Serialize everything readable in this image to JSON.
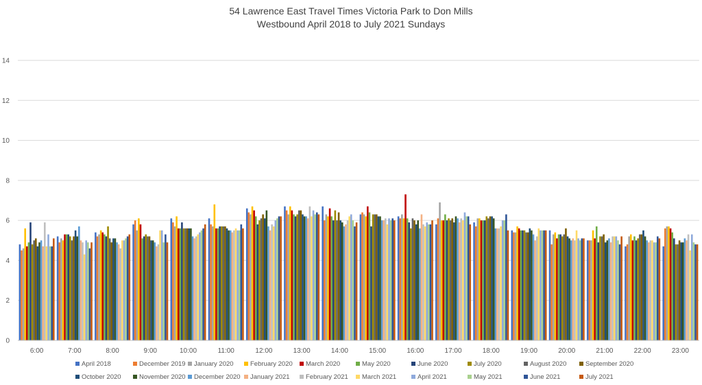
{
  "chart_data": {
    "type": "bar",
    "title": "54 Lawrence East Travel Times Victoria Park to Don Mills",
    "subtitle": "Westbound April 2018 to July 2021 Sundays",
    "xlabel": "",
    "ylabel": "",
    "ylim": [
      0,
      14
    ],
    "yticks": [
      "0",
      "2",
      "4",
      "6",
      "8",
      "10",
      "12",
      "14"
    ],
    "grid": true,
    "legend_position": "bottom",
    "categories": [
      "6:00",
      "7:00",
      "8:00",
      "9:00",
      "10:00",
      "11:00",
      "12:00",
      "13:00",
      "14:00",
      "15:00",
      "16:00",
      "17:00",
      "18:00",
      "19:00",
      "20:00",
      "21:00",
      "22:00",
      "23:00"
    ],
    "series": [
      {
        "name": "April 2018",
        "color": "#4472C4",
        "values": [
          4.8,
          5.2,
          5.4,
          5.8,
          6.1,
          6.1,
          6.6,
          6.7,
          6.7,
          6.3,
          6.2,
          5.8,
          5.9,
          5.5,
          5.5,
          5.0,
          4.7,
          4.7
        ]
      },
      {
        "name": "December 2019",
        "color": "#ED7D31",
        "values": [
          4.5,
          4.9,
          5.2,
          6.0,
          5.9,
          5.8,
          6.4,
          6.5,
          6.0,
          6.4,
          6.1,
          6.1,
          5.7,
          5.4,
          4.8,
          5.0,
          4.8,
          5.6
        ]
      },
      {
        "name": "January 2020",
        "color": "#A5A5A5",
        "values": [
          4.6,
          5.1,
          5.3,
          5.5,
          5.7,
          5.7,
          6.3,
          6.3,
          6.3,
          6.3,
          6.3,
          6.9,
          6.1,
          5.4,
          5.3,
          5.0,
          5.2,
          5.7
        ]
      },
      {
        "name": "February 2020",
        "color": "#FFC000",
        "values": [
          5.6,
          5.0,
          5.5,
          6.1,
          6.2,
          6.8,
          6.7,
          6.7,
          6.2,
          6.2,
          6.1,
          6.0,
          6.1,
          5.7,
          5.4,
          5.5,
          5.3,
          5.7
        ]
      },
      {
        "name": "March 2020",
        "color": "#C00000",
        "values": [
          4.7,
          5.3,
          5.4,
          5.8,
          5.6,
          5.6,
          6.5,
          6.5,
          6.6,
          6.7,
          7.3,
          6.0,
          6.0,
          5.6,
          5.1,
          5.1,
          5.0,
          5.6
        ]
      },
      {
        "name": "May 2020",
        "color": "#70AD47",
        "values": [
          4.9,
          5.3,
          5.3,
          5.1,
          5.6,
          5.6,
          6.2,
          6.3,
          6.2,
          6.4,
          6.1,
          6.3,
          6.0,
          5.5,
          5.3,
          5.7,
          5.2,
          5.4
        ]
      },
      {
        "name": "June 2020",
        "color": "#264478",
        "values": [
          5.9,
          5.3,
          5.2,
          5.2,
          5.9,
          5.7,
          5.8,
          6.2,
          6.0,
          5.7,
          5.9,
          6.0,
          6.0,
          5.5,
          5.3,
          4.9,
          5.0,
          5.1
        ]
      },
      {
        "name": "July 2020",
        "color": "#9E8A00",
        "values": [
          4.8,
          5.2,
          5.7,
          5.3,
          5.6,
          5.7,
          6.0,
          6.3,
          6.5,
          6.3,
          5.6,
          6.1,
          6.2,
          5.5,
          5.2,
          5.2,
          5.1,
          4.8
        ]
      },
      {
        "name": "August 2020",
        "color": "#636363",
        "values": [
          5.0,
          5.0,
          5.1,
          5.2,
          5.6,
          5.7,
          6.1,
          6.5,
          6.0,
          6.3,
          6.1,
          6.0,
          6.1,
          5.4,
          5.3,
          5.2,
          5.3,
          4.8
        ]
      },
      {
        "name": "September 2020",
        "color": "#7F6000",
        "values": [
          5.1,
          5.2,
          4.9,
          5.2,
          5.6,
          5.7,
          6.3,
          6.5,
          6.4,
          6.3,
          6.0,
          6.1,
          6.2,
          5.4,
          5.6,
          5.3,
          5.3,
          5.0
        ]
      },
      {
        "name": "October 2020",
        "color": "#1F4E79",
        "values": [
          4.7,
          5.5,
          5.1,
          5.0,
          5.6,
          5.6,
          6.1,
          6.3,
          6.0,
          6.2,
          5.8,
          5.9,
          6.2,
          5.6,
          5.2,
          4.9,
          5.5,
          4.9
        ]
      },
      {
        "name": "November 2020",
        "color": "#375623",
        "values": [
          4.9,
          5.2,
          5.1,
          5.0,
          5.6,
          5.5,
          6.5,
          6.2,
          5.9,
          6.2,
          6.0,
          6.2,
          6.1,
          5.5,
          5.1,
          5.0,
          5.2,
          4.9
        ]
      },
      {
        "name": "December 2020",
        "color": "#5B9BD5",
        "values": [
          5.0,
          5.7,
          4.9,
          4.9,
          5.2,
          5.5,
          5.7,
          6.2,
          5.7,
          6.0,
          5.6,
          6.1,
          5.6,
          5.3,
          5.0,
          5.1,
          5.0,
          5.1
        ]
      },
      {
        "name": "January 2021",
        "color": "#F4B183",
        "values": [
          4.7,
          5.0,
          4.8,
          4.7,
          5.1,
          5.4,
          5.5,
          6.1,
          5.8,
          6.0,
          6.3,
          5.9,
          5.6,
          5.0,
          5.1,
          4.9,
          4.9,
          5.0
        ]
      },
      {
        "name": "February 2021",
        "color": "#BFBFBF",
        "values": [
          5.9,
          4.9,
          4.6,
          4.8,
          5.2,
          5.5,
          5.8,
          6.7,
          6.0,
          6.1,
          5.8,
          6.1,
          5.6,
          5.2,
          5.0,
          5.2,
          5.0,
          5.3
        ]
      },
      {
        "name": "March 2021",
        "color": "#FFD966",
        "values": [
          4.7,
          4.3,
          5.0,
          5.5,
          5.3,
          5.6,
          5.7,
          6.2,
          6.2,
          5.8,
          5.7,
          6.0,
          5.7,
          5.6,
          5.5,
          5.2,
          5.0,
          4.5
        ]
      },
      {
        "name": "April 2021",
        "color": "#8FAADC",
        "values": [
          5.3,
          5.0,
          5.0,
          5.5,
          5.4,
          5.5,
          6.0,
          6.5,
          6.3,
          6.1,
          5.9,
          6.4,
          6.0,
          5.5,
          5.1,
          5.2,
          4.9,
          5.3
        ]
      },
      {
        "name": "May 2021",
        "color": "#A9D18E",
        "values": [
          4.7,
          4.9,
          5.1,
          4.9,
          5.5,
          5.5,
          6.1,
          6.3,
          6.0,
          6.0,
          5.8,
          6.2,
          6.0,
          5.5,
          5.0,
          5.0,
          4.9,
          4.9
        ]
      },
      {
        "name": "June 2021",
        "color": "#2F5597",
        "values": [
          4.7,
          4.6,
          5.2,
          5.3,
          5.6,
          5.8,
          6.2,
          6.4,
          5.7,
          6.1,
          5.8,
          6.2,
          6.3,
          5.5,
          5.1,
          4.8,
          5.2,
          4.8
        ]
      },
      {
        "name": "July 2021",
        "color": "#C55A11",
        "values": [
          5.1,
          4.9,
          5.3,
          4.9,
          5.8,
          5.6,
          6.2,
          6.3,
          5.9,
          6.0,
          6.0,
          5.8,
          5.5,
          5.5,
          5.1,
          5.2,
          5.1,
          4.8
        ]
      }
    ]
  }
}
